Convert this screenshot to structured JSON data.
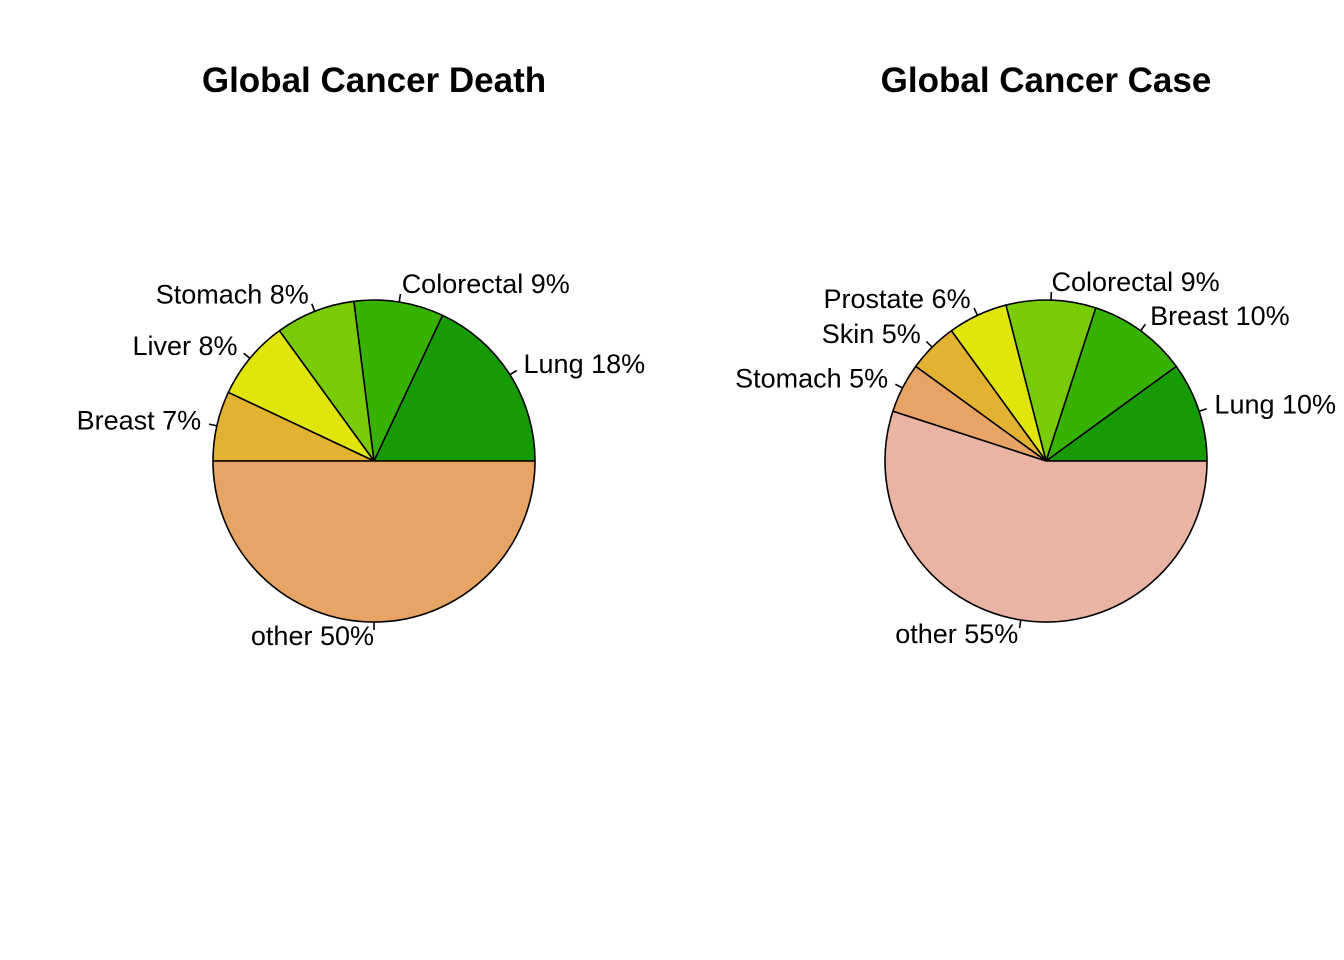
{
  "chart_data": [
    {
      "type": "pie",
      "title": "Global Cancer Death",
      "start": "right, counter-clockwise",
      "slices": [
        {
          "name": "Lung",
          "value": 18,
          "label": "Lung 18%",
          "color": "#169b04"
        },
        {
          "name": "Colorectal",
          "value": 9,
          "label": "Colorectal 9%",
          "color": "#38b200"
        },
        {
          "name": "Stomach",
          "value": 8,
          "label": "Stomach 8%",
          "color": "#79cc05"
        },
        {
          "name": "Liver",
          "value": 8,
          "label": "Liver 8%",
          "color": "#e0e60b"
        },
        {
          "name": "Breast",
          "value": 7,
          "label": "Breast 7%",
          "color": "#e3b230"
        },
        {
          "name": "other",
          "value": 50,
          "label": "other 50%",
          "color": "#e7a464"
        }
      ]
    },
    {
      "type": "pie",
      "title": "Global Cancer Case",
      "start": "right, counter-clockwise",
      "slices": [
        {
          "name": "Lung",
          "value": 10,
          "label": "Lung 10%",
          "color": "#169b04"
        },
        {
          "name": "Breast",
          "value": 10,
          "label": "Breast 10%",
          "color": "#38b200"
        },
        {
          "name": "Colorectal",
          "value": 9,
          "label": "Colorectal 9%",
          "color": "#79cc05"
        },
        {
          "name": "Prostate",
          "value": 6,
          "label": "Prostate 6%",
          "color": "#e0e60b"
        },
        {
          "name": "Skin",
          "value": 5,
          "label": "Skin 5%",
          "color": "#e3b230"
        },
        {
          "name": "Stomach",
          "value": 5,
          "label": "Stomach 5%",
          "color": "#e7a464"
        },
        {
          "name": "other",
          "value": 55,
          "label": "other 55%",
          "color": "#eab4a4"
        }
      ]
    }
  ]
}
